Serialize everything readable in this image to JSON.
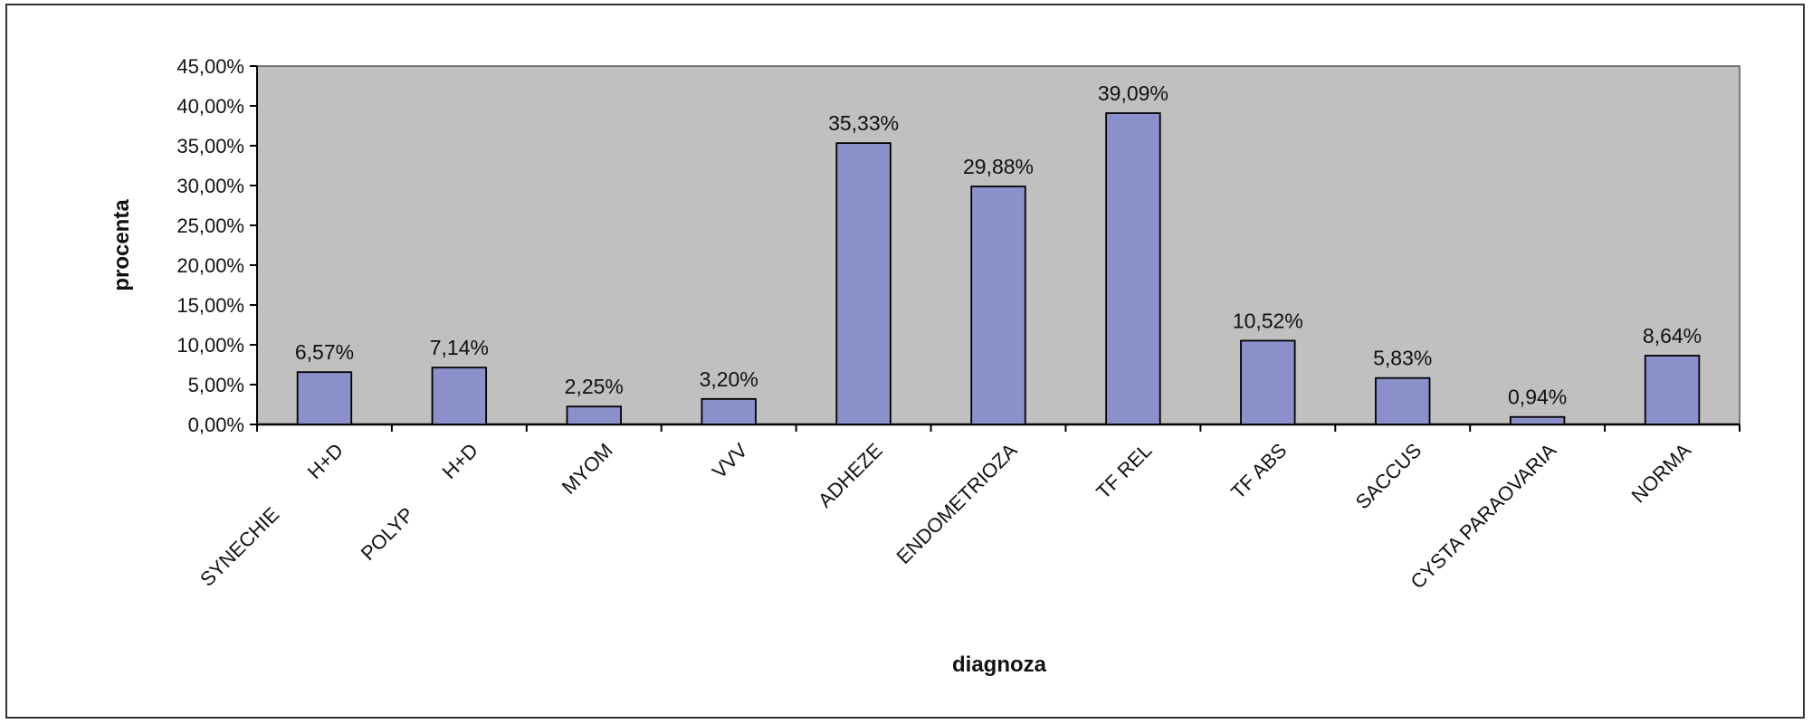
{
  "chart_data": {
    "type": "bar",
    "xlabel": "diagnoza",
    "ylabel": "procenta",
    "ylim": [
      0,
      45
    ],
    "y_ticks": [
      "0,00%",
      "5,00%",
      "10,00%",
      "15,00%",
      "20,00%",
      "25,00%",
      "30,00%",
      "35,00%",
      "40,00%",
      "45,00%"
    ],
    "categories": [
      [
        "SYNECHIE",
        "H+D"
      ],
      [
        "POLYP",
        "H+D"
      ],
      [
        "MYOM"
      ],
      [
        "VVV"
      ],
      [
        "ADHEZE"
      ],
      [
        "ENDOMETRIOZA"
      ],
      [
        "TF REL"
      ],
      [
        "TF ABS"
      ],
      [
        "SACCUS"
      ],
      [
        "CYSTA PARAOVARIA"
      ],
      [
        "NORMA"
      ]
    ],
    "values": [
      6.57,
      7.14,
      2.25,
      3.2,
      35.33,
      29.88,
      39.09,
      10.52,
      5.83,
      0.94,
      8.64
    ],
    "data_labels": [
      "6,57%",
      "7,14%",
      "2,25%",
      "3,20%",
      "35,33%",
      "29,88%",
      "39,09%",
      "10,52%",
      "5,83%",
      "0,94%",
      "8,64%"
    ],
    "grid": false,
    "legend": "none",
    "colors": {
      "plot_background": "#c0c0c0",
      "bar_fill": "#8b8fca",
      "bar_stroke": "#000000",
      "axis": "#000000"
    }
  }
}
